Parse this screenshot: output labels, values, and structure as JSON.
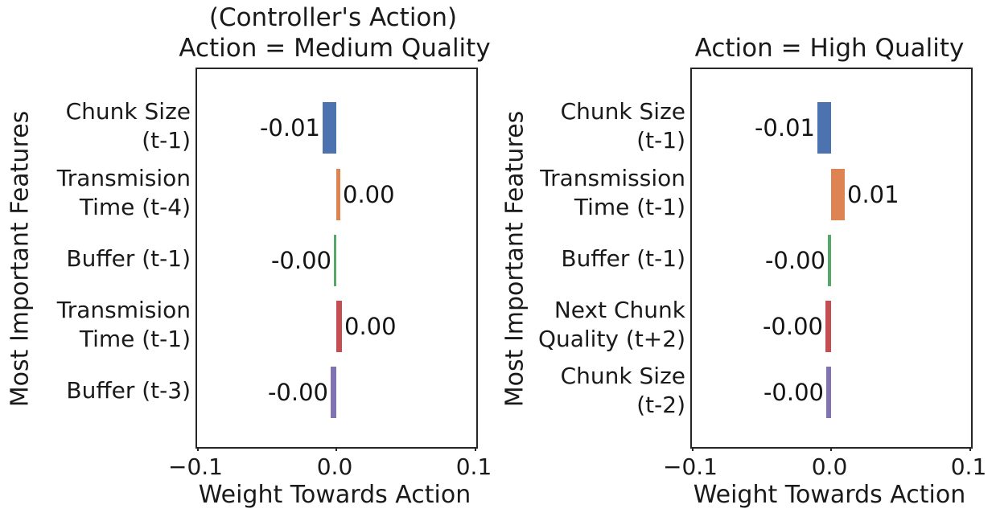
{
  "figure": {
    "suptitle_line1": "(Controller's Action)",
    "background": "#ffffff",
    "text_color": "#1a1a1a",
    "axes_border_color": "#262626"
  },
  "chart_data": [
    {
      "type": "bar",
      "orientation": "horizontal",
      "title": "Action = Medium Quality",
      "categories": [
        "Chunk Size\n(t-1)",
        "Transmision\nTime (t-4)",
        "Buffer (t-1)",
        "Transmision\nTime (t-1)",
        "Buffer (t-3)"
      ],
      "values": [
        -0.01,
        0.003,
        -0.002,
        0.004,
        -0.004
      ],
      "bar_labels": [
        "-0.01",
        "0.00",
        "-0.00",
        "0.00",
        "-0.00"
      ],
      "bar_colors": [
        "#4C72B0",
        "#DD8452",
        "#55A868",
        "#C44E52",
        "#8172B3"
      ],
      "xlabel": "Weight Towards Action",
      "ylabel": "Most Important Features",
      "xlim": [
        -0.1,
        0.1
      ],
      "xtick_labels": [
        "−0.1",
        "0.0",
        "0.1"
      ],
      "grid": false,
      "legend": null
    },
    {
      "type": "bar",
      "orientation": "horizontal",
      "title": "Action = High Quality",
      "categories": [
        "Chunk Size\n(t-1)",
        "Transmission\nTime (t-1)",
        "Buffer (t-1)",
        "Next Chunk\nQuality (t+2)",
        "Chunk Size\n(t-2)"
      ],
      "values": [
        -0.01,
        0.01,
        -0.0025,
        -0.004,
        -0.0035
      ],
      "bar_labels": [
        "-0.01",
        "0.01",
        "-0.00",
        "-0.00",
        "-0.00"
      ],
      "bar_colors": [
        "#4C72B0",
        "#DD8452",
        "#55A868",
        "#C44E52",
        "#8172B3"
      ],
      "xlabel": "Weight Towards Action",
      "ylabel": "Most Important Features",
      "xlim": [
        -0.1,
        0.1
      ],
      "xtick_labels": [
        "−0.1",
        "0.0",
        "0.1"
      ],
      "grid": false,
      "legend": null
    }
  ]
}
